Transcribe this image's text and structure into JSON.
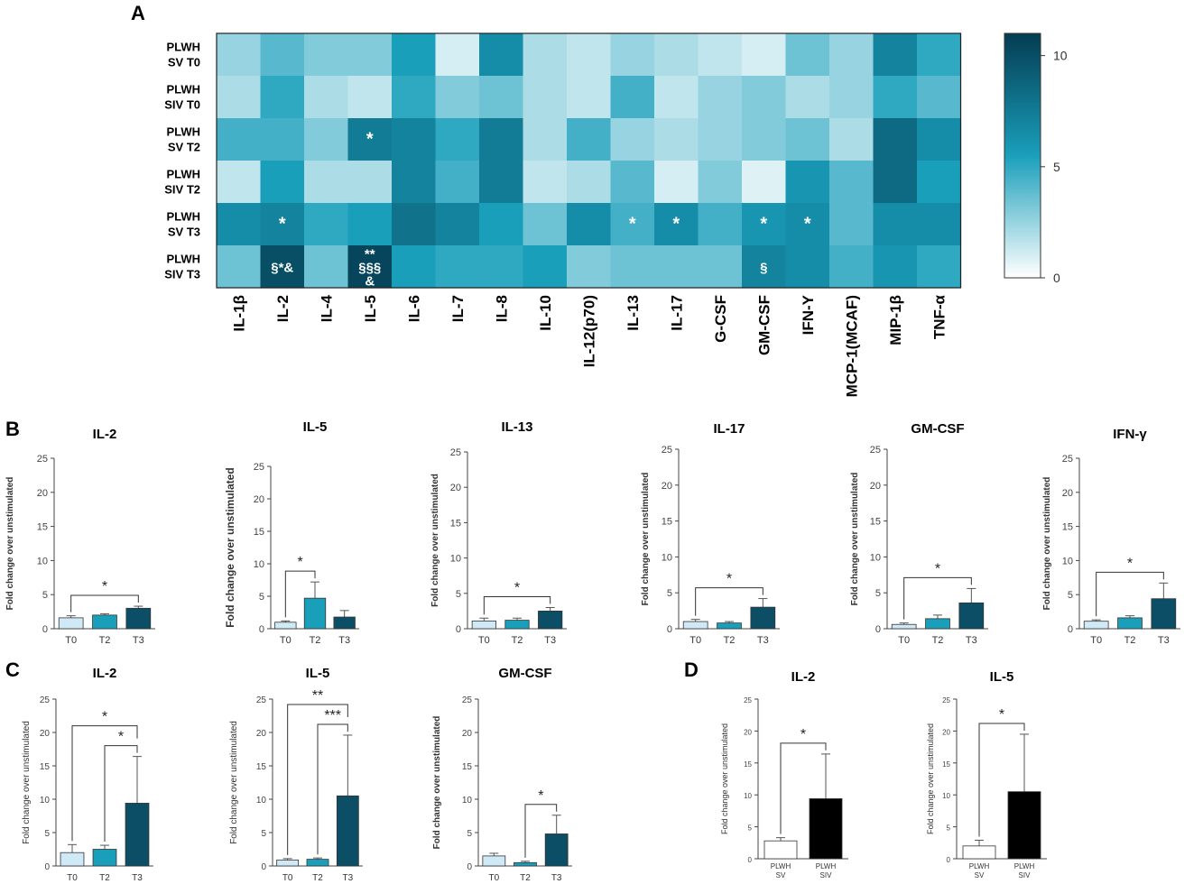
{
  "chart_data": [
    {
      "panel": "A",
      "type": "heatmap",
      "rows": [
        "PLWH SV T0",
        "PLWH SIV T0",
        "PLWH SV T2",
        "PLWH SIV T2",
        "PLWH SV T3",
        "PLWH SIV T3"
      ],
      "columns": [
        "IL-1β",
        "IL-2",
        "IL-4",
        "IL-5",
        "IL-6",
        "IL-7",
        "IL-8",
        "IL-10",
        "IL-12(p70)",
        "IL-13",
        "IL-17",
        "G-CSF",
        "GM-CSF",
        "IFN-Y",
        "MCP-1(MCAF)",
        "MIP-1β",
        "TNF-α"
      ],
      "values": [
        [
          2.5,
          4.0,
          3.0,
          3.0,
          5.5,
          1.0,
          6.5,
          2.0,
          1.5,
          2.5,
          2.0,
          1.5,
          1.0,
          3.5,
          2.5,
          7.0,
          5.0
        ],
        [
          2.0,
          5.0,
          2.0,
          1.5,
          5.0,
          3.0,
          3.5,
          2.0,
          1.5,
          4.5,
          1.5,
          2.5,
          3.0,
          2.0,
          2.5,
          5.0,
          4.0
        ],
        [
          4.5,
          4.5,
          3.0,
          7.5,
          7.0,
          5.0,
          7.5,
          2.0,
          4.5,
          2.5,
          2.0,
          2.5,
          3.0,
          3.5,
          2.0,
          8.5,
          6.5
        ],
        [
          1.5,
          5.5,
          2.0,
          2.0,
          7.0,
          4.5,
          7.5,
          1.5,
          2.0,
          4.0,
          1.0,
          3.0,
          0.8,
          6.0,
          4.0,
          8.5,
          5.5
        ],
        [
          6.5,
          7.0,
          5.0,
          5.5,
          8.0,
          7.0,
          5.5,
          3.5,
          6.5,
          4.5,
          6.5,
          4.5,
          6.0,
          6.5,
          4.0,
          6.5,
          6.5
        ],
        [
          3.5,
          10.0,
          3.5,
          10.5,
          5.5,
          5.0,
          5.0,
          5.5,
          3.0,
          3.5,
          3.5,
          3.5,
          7.0,
          6.5,
          4.5,
          6.0,
          5.0
        ]
      ],
      "annotations": [
        {
          "row": 2,
          "col": 3,
          "text": "*"
        },
        {
          "row": 4,
          "col": 1,
          "text": "*"
        },
        {
          "row": 4,
          "col": 9,
          "text": "*"
        },
        {
          "row": 4,
          "col": 10,
          "text": "*"
        },
        {
          "row": 4,
          "col": 12,
          "text": "*"
        },
        {
          "row": 4,
          "col": 13,
          "text": "*"
        },
        {
          "row": 5,
          "col": 1,
          "text": "§*&"
        },
        {
          "row": 5,
          "col": 3,
          "text": "**"
        },
        {
          "row": 5,
          "col": 3,
          "text": "§§§"
        },
        {
          "row": 5,
          "col": 3,
          "text": "&"
        },
        {
          "row": 5,
          "col": 12,
          "text": "§"
        }
      ],
      "colorbar": {
        "min": 0,
        "max": 11,
        "ticks": [
          "0",
          "5",
          "10"
        ],
        "low_color": "#ffffff",
        "mid_color": "#1a9fbb",
        "high_color": "#043c52"
      }
    },
    {
      "panel": "B",
      "title": "IL-2",
      "type": "bar",
      "categories": [
        "T0",
        "T2",
        "T3"
      ],
      "values": [
        1.6,
        2.0,
        3.0
      ],
      "errors": [
        0.3,
        0.2,
        0.3
      ],
      "ylabel": "Fold change over unstimulated",
      "ylim": [
        0,
        25
      ],
      "yticks": [
        "0",
        "5",
        "10",
        "15",
        "20",
        "25"
      ],
      "colors": [
        "#cfe9f6",
        "#1a9fbb",
        "#0b4e66"
      ],
      "significance": [
        {
          "from": 0,
          "to": 2,
          "label": "*"
        }
      ]
    },
    {
      "panel": "",
      "title": "IL-5",
      "type": "bar",
      "categories": [
        "T0",
        "T2",
        "T3"
      ],
      "values": [
        1.0,
        4.7,
        1.8
      ],
      "errors": [
        0.2,
        2.5,
        1.0
      ],
      "ylabel": "Fold change over unstimulated",
      "ylim": [
        0,
        25
      ],
      "yticks": [
        "0",
        "5",
        "10",
        "15",
        "20",
        "25"
      ],
      "colors": [
        "#cfe9f6",
        "#1a9fbb",
        "#0b4e66"
      ],
      "significance": [
        {
          "from": 0,
          "to": 1,
          "label": "*"
        }
      ]
    },
    {
      "panel": "",
      "title": "IL-13",
      "type": "bar",
      "categories": [
        "T0",
        "T2",
        "T3"
      ],
      "values": [
        1.1,
        1.2,
        2.5
      ],
      "errors": [
        0.4,
        0.3,
        0.5
      ],
      "ylabel": "Fold change over unstimulated",
      "ylim": [
        0,
        25
      ],
      "yticks": [
        "0",
        "5",
        "10",
        "15",
        "20",
        "25"
      ],
      "colors": [
        "#cfe9f6",
        "#1a9fbb",
        "#0b4e66"
      ],
      "significance": [
        {
          "from": 0,
          "to": 2,
          "label": "*"
        }
      ]
    },
    {
      "panel": "",
      "title": "IL-17",
      "type": "bar",
      "categories": [
        "T0",
        "T2",
        "T3"
      ],
      "values": [
        1.0,
        0.8,
        3.0
      ],
      "errors": [
        0.3,
        0.2,
        1.2
      ],
      "ylabel": "Fold change over unstimulated",
      "ylim": [
        0,
        25
      ],
      "yticks": [
        "0",
        "5",
        "10",
        "15",
        "20",
        "25"
      ],
      "colors": [
        "#cfe9f6",
        "#1a9fbb",
        "#0b4e66"
      ],
      "significance": [
        {
          "from": 0,
          "to": 2,
          "label": "*"
        }
      ]
    },
    {
      "panel": "",
      "title": "GM-CSF",
      "type": "bar",
      "categories": [
        "T0",
        "T2",
        "T3"
      ],
      "values": [
        0.6,
        1.4,
        3.6
      ],
      "errors": [
        0.2,
        0.5,
        2.0
      ],
      "ylabel": "Fold change over unstimulated",
      "ylim": [
        0,
        25
      ],
      "yticks": [
        "0",
        "5",
        "10",
        "15",
        "20",
        "25"
      ],
      "colors": [
        "#cfe9f6",
        "#1a9fbb",
        "#0b4e66"
      ],
      "significance": [
        {
          "from": 0,
          "to": 2,
          "label": "*"
        }
      ]
    },
    {
      "panel": "",
      "title": "IFN-γ",
      "type": "bar",
      "categories": [
        "T0",
        "T2",
        "T3"
      ],
      "values": [
        1.1,
        1.6,
        4.4
      ],
      "errors": [
        0.2,
        0.3,
        2.3
      ],
      "ylabel": "Fold change over unstimulated",
      "ylim": [
        0,
        25
      ],
      "yticks": [
        "0",
        "5",
        "10",
        "15",
        "20",
        "25"
      ],
      "colors": [
        "#cfe9f6",
        "#1a9fbb",
        "#0b4e66"
      ],
      "significance": [
        {
          "from": 0,
          "to": 2,
          "label": "*"
        }
      ]
    },
    {
      "panel": "C",
      "title": "IL-2",
      "type": "bar",
      "categories": [
        "T0",
        "T2",
        "T3"
      ],
      "values": [
        2.0,
        2.5,
        9.4
      ],
      "errors": [
        1.2,
        0.6,
        7.0
      ],
      "ylabel": "Fold change over unstimulated",
      "ylim": [
        0,
        25
      ],
      "yticks": [
        "0",
        "5",
        "10",
        "15",
        "20",
        "25"
      ],
      "colors": [
        "#cfe9f6",
        "#1a9fbb",
        "#0b4e66"
      ],
      "significance": [
        {
          "from": 0,
          "to": 2,
          "label": "*"
        },
        {
          "from": 1,
          "to": 2,
          "label": "*"
        }
      ]
    },
    {
      "panel": "",
      "title": "IL-5",
      "type": "bar",
      "categories": [
        "T0",
        "T2",
        "T3"
      ],
      "values": [
        0.9,
        1.0,
        10.5
      ],
      "errors": [
        0.2,
        0.2,
        9.1
      ],
      "ylabel": "Fold change over unstimulated",
      "ylim": [
        0,
        25
      ],
      "yticks": [
        "0",
        "5",
        "10",
        "15",
        "20",
        "25"
      ],
      "colors": [
        "#cfe9f6",
        "#1a9fbb",
        "#0b4e66"
      ],
      "significance": [
        {
          "from": 0,
          "to": 2,
          "label": "**"
        },
        {
          "from": 1,
          "to": 2,
          "label": "***"
        }
      ]
    },
    {
      "panel": "",
      "title": "GM-CSF",
      "type": "bar",
      "categories": [
        "T0",
        "T2",
        "T3"
      ],
      "values": [
        1.5,
        0.5,
        4.8
      ],
      "errors": [
        0.4,
        0.2,
        2.8
      ],
      "ylabel": "Fold change over unstimulated",
      "ylim": [
        0,
        25
      ],
      "yticks": [
        "0",
        "5",
        "10",
        "15",
        "20",
        "25"
      ],
      "colors": [
        "#cfe9f6",
        "#1a9fbb",
        "#0b4e66"
      ],
      "significance": [
        {
          "from": 1,
          "to": 2,
          "label": "*"
        }
      ]
    },
    {
      "panel": "D",
      "title": "IL-2",
      "type": "bar",
      "categories": [
        "PLWH SV",
        "PLWH SIV"
      ],
      "values": [
        2.8,
        9.4
      ],
      "errors": [
        0.5,
        7.0
      ],
      "ylabel": "Fold change over unstimulated",
      "ylim": [
        0,
        25
      ],
      "yticks": [
        "0",
        "5",
        "10",
        "15",
        "20",
        "25"
      ],
      "colors": [
        "#ffffff",
        "#000000"
      ],
      "significance": [
        {
          "from": 0,
          "to": 1,
          "label": "*"
        }
      ]
    },
    {
      "panel": "",
      "title": "IL-5",
      "type": "bar",
      "categories": [
        "PLWH SV",
        "PLWH SIV"
      ],
      "values": [
        2.0,
        10.5
      ],
      "errors": [
        0.9,
        9.0
      ],
      "ylabel": "Fold change over unstimulated",
      "ylim": [
        0,
        25
      ],
      "yticks": [
        "0",
        "5",
        "10",
        "15",
        "20",
        "25"
      ],
      "colors": [
        "#ffffff",
        "#000000"
      ],
      "significance": [
        {
          "from": 0,
          "to": 1,
          "label": "*"
        }
      ]
    }
  ]
}
